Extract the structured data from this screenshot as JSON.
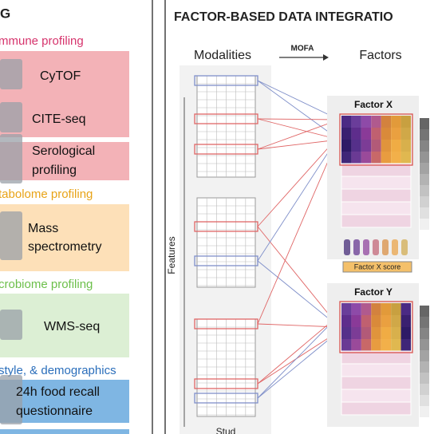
{
  "left_panel": {
    "heading": "G",
    "sections": [
      {
        "title": "mmune profiling",
        "items": [
          [
            "CyTOF"
          ],
          [
            "CITE-seq"
          ],
          [
            "Serological",
            "profiling"
          ]
        ]
      },
      {
        "title": "tabolome profiling",
        "items": [
          [
            "Mass",
            "spectrometry"
          ]
        ]
      },
      {
        "title": "crobiome profiling",
        "items": [
          [
            "WMS-seq"
          ]
        ]
      },
      {
        "title": "style, & demographics",
        "items": [
          [
            "24h food recall",
            "questionnaire"
          ]
        ]
      }
    ]
  },
  "right_panel": {
    "title": "FACTOR-BASED DATA INTEGRATIO",
    "modalities": "Modalities",
    "method": "MOFA",
    "factors": "Factors",
    "features_axis": "Features",
    "bottom_label": "Stud",
    "factor_panels": [
      {
        "label": "Factor X",
        "score": "Factor X score"
      },
      {
        "label": "Factor Y"
      }
    ]
  }
}
